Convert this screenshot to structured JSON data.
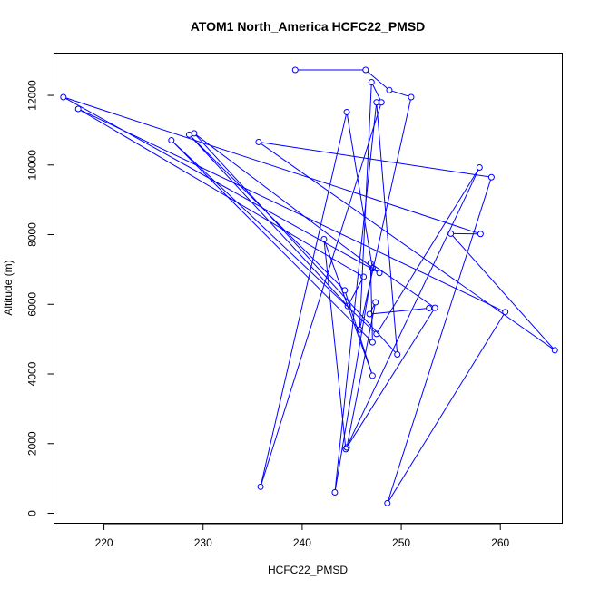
{
  "chart_data": {
    "type": "line",
    "title": "ATOM1 North_America HCFC22_PMSD",
    "xlabel": "HCFC22_PMSD",
    "ylabel": "Altitude (m)",
    "xlim": [
      215,
      266.3
    ],
    "ylim": [
      -300,
      13200
    ],
    "x_ticks": [
      220,
      230,
      240,
      250,
      260
    ],
    "y_ticks": [
      0,
      2000,
      4000,
      6000,
      8000,
      10000,
      12000
    ],
    "grid": false,
    "legend": "none",
    "marker": "open-circle",
    "colors": {
      "series": "#0000ff",
      "axes": "#000000"
    },
    "series": [
      {
        "points": [
          [
            239.3,
            12730
          ],
          [
            246.4,
            12730
          ],
          [
            248.8,
            12150
          ],
          [
            251.0,
            11950
          ],
          [
            245.8,
            5270
          ],
          [
            247.0,
            12380
          ],
          [
            248.0,
            11800
          ],
          [
            235.8,
            760
          ],
          [
            244.5,
            11520
          ],
          [
            247.1,
            7030
          ],
          [
            243.3,
            600
          ],
          [
            247.5,
            11800
          ],
          [
            249.6,
            4560
          ],
          [
            229.1,
            10910
          ],
          [
            247.8,
            6900
          ],
          [
            215.9,
            11950
          ],
          [
            258.0,
            8020
          ],
          [
            255.0,
            8030
          ],
          [
            265.5,
            4680
          ],
          [
            235.6,
            10660
          ],
          [
            259.1,
            9650
          ],
          [
            248.6,
            290
          ],
          [
            260.5,
            5780
          ],
          [
            217.4,
            11610
          ],
          [
            246.2,
            6790
          ],
          [
            244.6,
            5950
          ],
          [
            228.6,
            10870
          ],
          [
            244.3,
            6400
          ],
          [
            247.1,
            3950
          ],
          [
            242.2,
            7870
          ],
          [
            244.4,
            1840
          ],
          [
            257.9,
            9930
          ],
          [
            247.5,
            5150
          ],
          [
            226.8,
            10710
          ],
          [
            247.1,
            4910
          ],
          [
            246.9,
            7180
          ],
          [
            253.4,
            5900
          ],
          [
            244.5,
            1890
          ],
          [
            247.4,
            6060
          ],
          [
            246.8,
            5720
          ],
          [
            252.8,
            5890
          ]
        ]
      }
    ]
  }
}
